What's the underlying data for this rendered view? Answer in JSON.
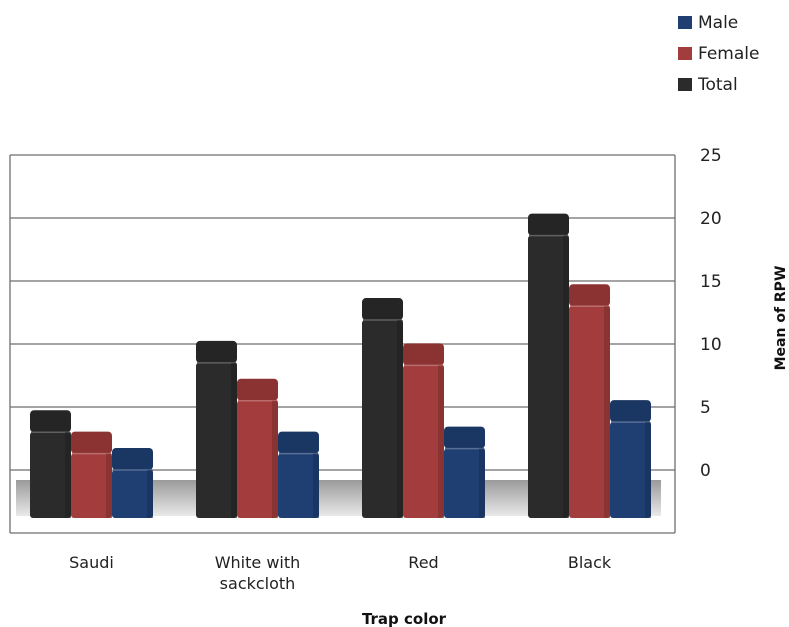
{
  "chart_data": {
    "type": "bar",
    "categories": [
      "Saudi",
      "White with\nsackcloth",
      "Red",
      "Black"
    ],
    "series": [
      {
        "name": "Total",
        "values": [
          3.0,
          8.5,
          11.9,
          18.6
        ]
      },
      {
        "name": "Female",
        "values": [
          1.3,
          5.5,
          8.3,
          13.0
        ]
      },
      {
        "name": "Male",
        "values": [
          0.0,
          1.3,
          1.7,
          3.8
        ]
      }
    ],
    "legend_order": [
      "Male",
      "Female",
      "Total"
    ],
    "legend_position": "top-right",
    "xlabel": "Trap color",
    "ylabel": "Mean of RPW",
    "ylim": [
      0,
      25
    ],
    "yticks": [
      0,
      5,
      10,
      15,
      20,
      25
    ],
    "y_axis_side": "right",
    "grid": true,
    "three_d": true,
    "colors": {
      "Total": "#2b2b2b",
      "Female": "#a33c3c",
      "Male": "#1f3f73"
    }
  }
}
